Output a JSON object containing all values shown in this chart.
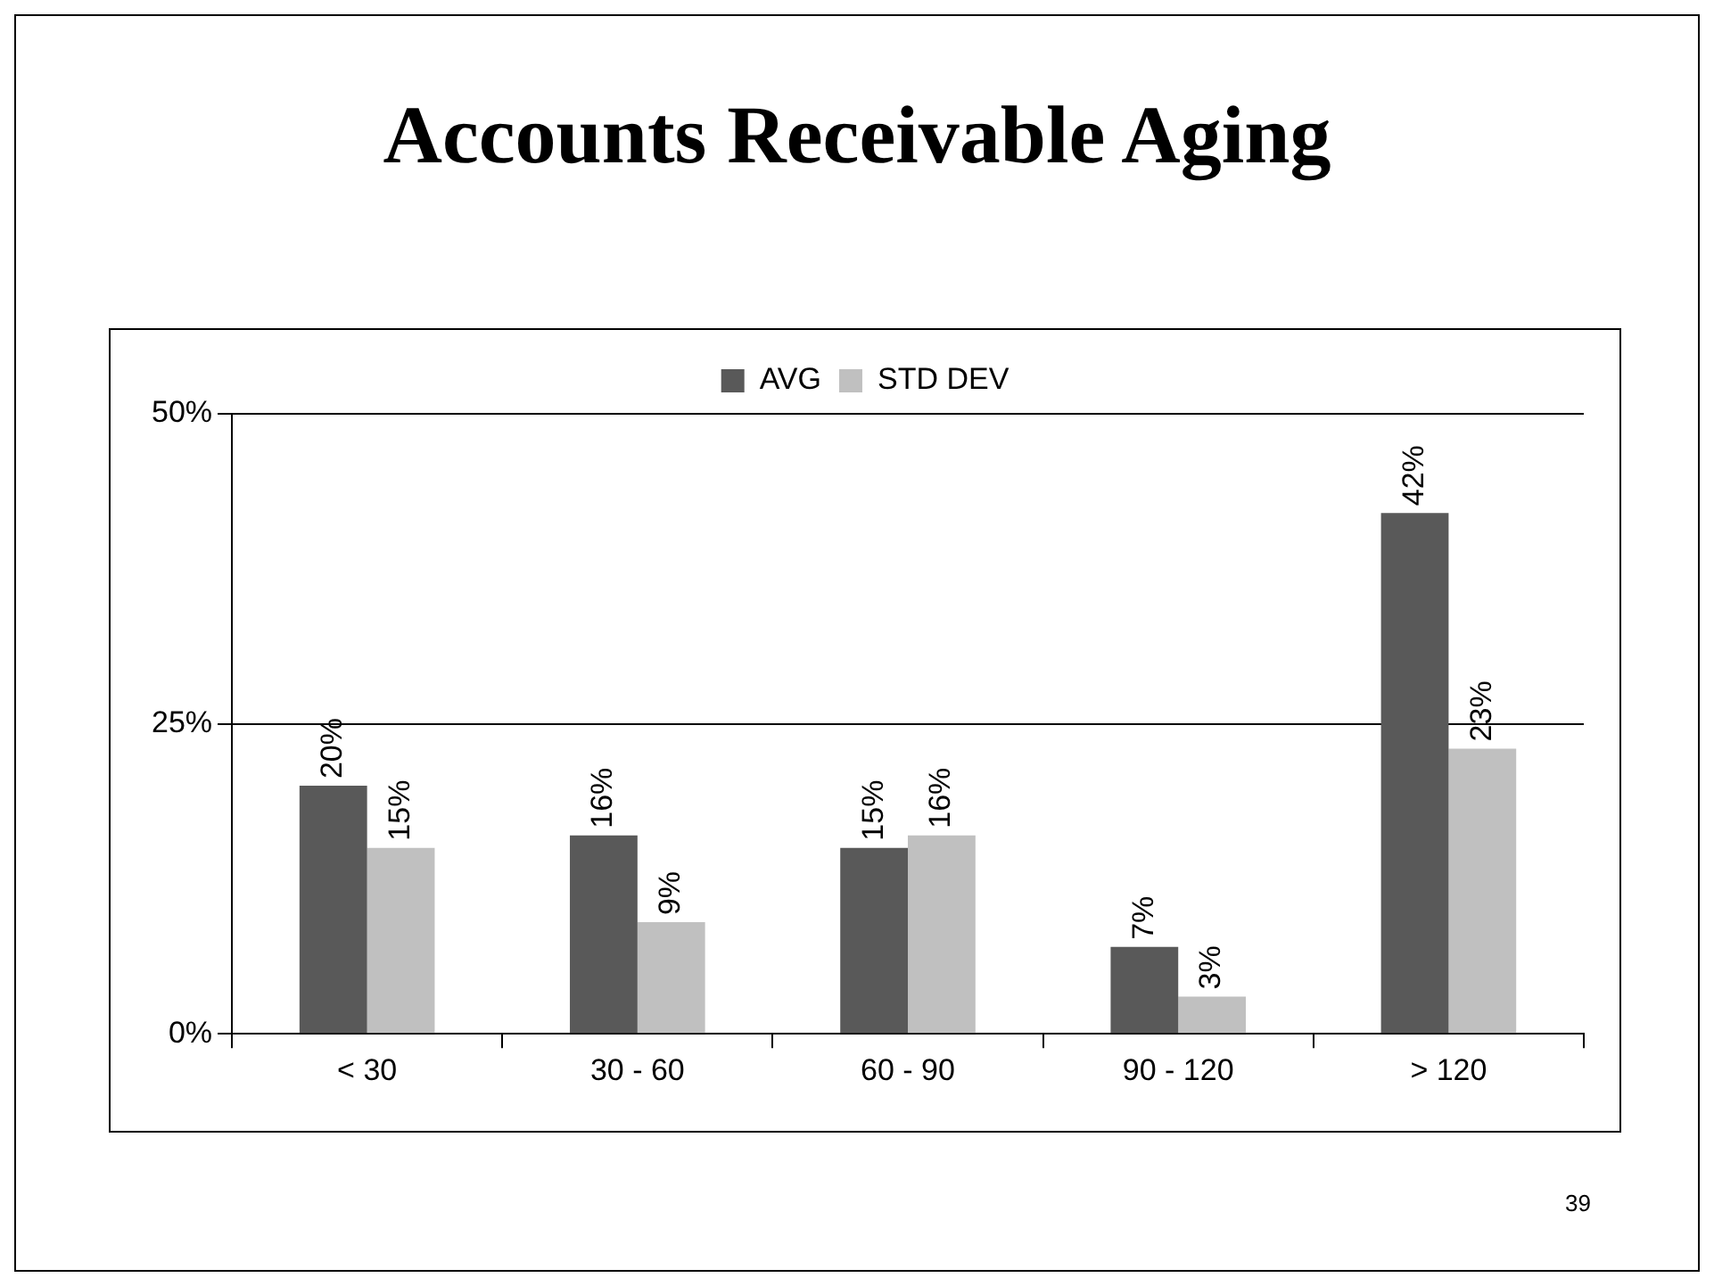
{
  "chart_data": {
    "type": "bar",
    "title": "Accounts Receivable Aging",
    "categories": [
      "< 30",
      "30 - 60",
      "60 - 90",
      "90 - 120",
      "> 120"
    ],
    "series": [
      {
        "name": "AVG",
        "color": "#595959",
        "values": [
          20,
          16,
          15,
          7,
          42
        ],
        "value_labels": [
          "20%",
          "16%",
          "15%",
          "7%",
          "42%"
        ]
      },
      {
        "name": "STD DEV",
        "color": "#c0c0c0",
        "values": [
          15,
          9,
          16,
          3,
          23
        ],
        "value_labels": [
          "15%",
          "9%",
          "16%",
          "3%",
          "23%"
        ]
      }
    ],
    "ylim": [
      0,
      50
    ],
    "yticks": [
      {
        "value": 0,
        "label": "0%"
      },
      {
        "value": 25,
        "label": "25%"
      },
      {
        "value": 50,
        "label": "50%"
      }
    ],
    "grid": "y",
    "legend": "top",
    "annotations": [
      "39"
    ]
  }
}
